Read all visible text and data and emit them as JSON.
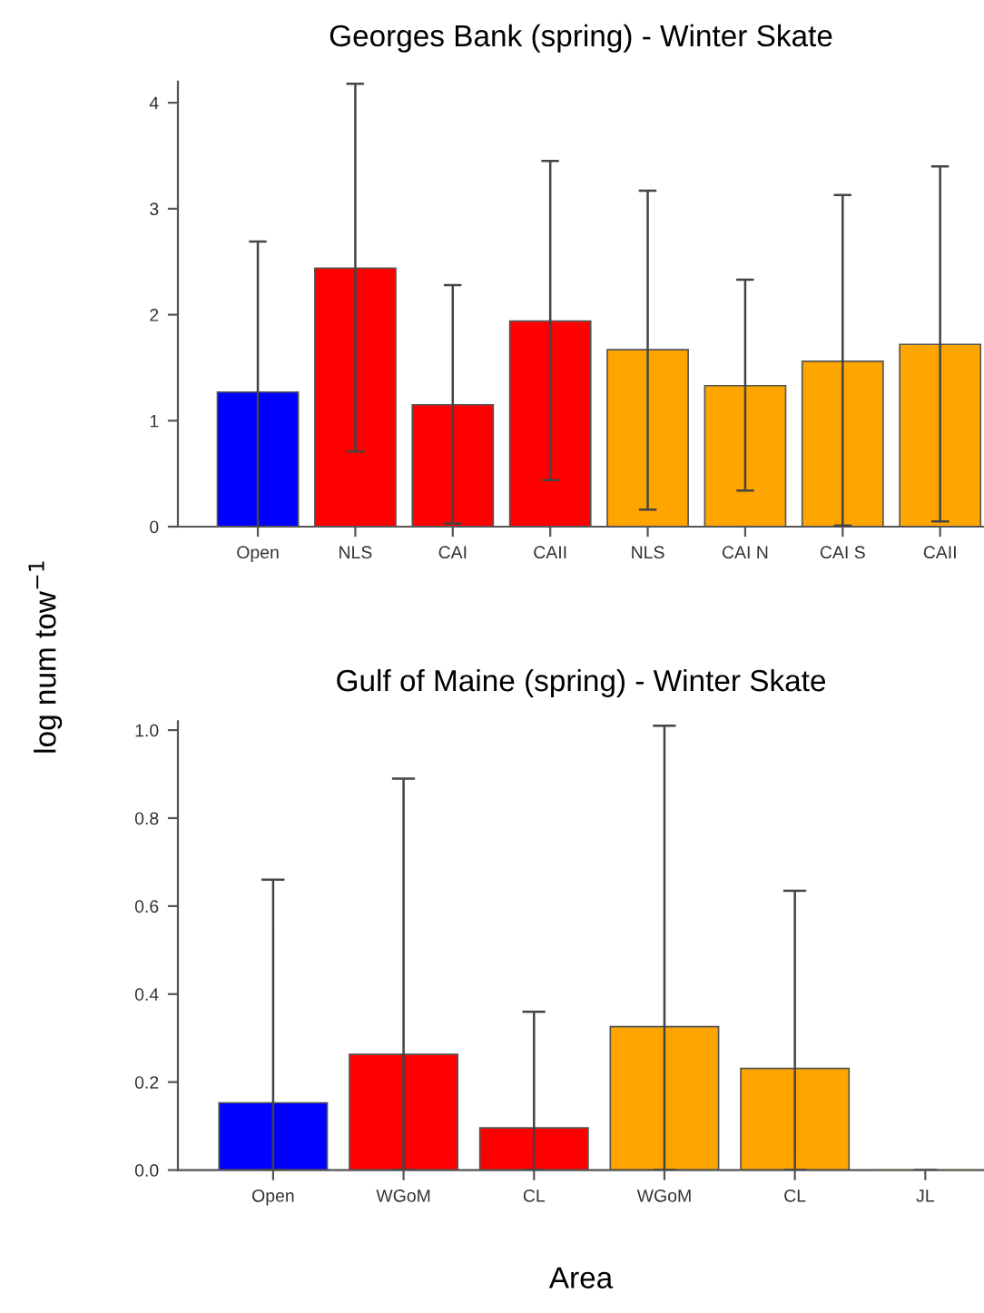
{
  "chart_data": [
    {
      "type": "bar",
      "title": "Georges Bank (spring) - Winter Skate",
      "ylabel": "log num tow$^{−1}$",
      "categories": [
        "Open",
        "NLS",
        "CAI",
        "CAII",
        "NLS",
        "CAI N",
        "CAI S",
        "CAII"
      ],
      "values": [
        1.27,
        2.44,
        1.15,
        1.94,
        1.67,
        1.33,
        1.56,
        1.72
      ],
      "errors": [
        [
          0,
          2.69
        ],
        [
          0.71,
          4.18
        ],
        [
          0.03,
          2.28
        ],
        [
          0.44,
          3.45
        ],
        [
          0.16,
          3.17
        ],
        [
          0.34,
          2.33
        ],
        [
          0.01,
          3.13
        ],
        [
          0.05,
          3.4
        ]
      ],
      "colors": [
        "#0000ff",
        "#ff0000",
        "#ff0000",
        "#ff0000",
        "#ffa500",
        "#ffa500",
        "#ffa500",
        "#ffa500"
      ],
      "ylim": [
        0,
        4.2
      ],
      "yticks": [
        0,
        1,
        2,
        3,
        4
      ],
      "grid": false
    },
    {
      "type": "bar",
      "title": "Gulf of Maine (spring) - Winter Skate",
      "xlabel": "Area",
      "categories": [
        "Open",
        "WGoM",
        "CL",
        "WGoM",
        "CL",
        "JL"
      ],
      "values": [
        0.153,
        0.263,
        0.096,
        0.326,
        0.231,
        0
      ],
      "errors": [
        [
          0,
          0.66
        ],
        [
          0,
          0.89
        ],
        [
          0,
          0.36
        ],
        [
          0,
          1.01
        ],
        [
          0,
          0.635
        ],
        [
          0,
          0
        ]
      ],
      "colors": [
        "#0000ff",
        "#ff0000",
        "#ff0000",
        "#ffa500",
        "#ffa500",
        "#ffa500"
      ],
      "ylim": [
        0,
        1.02
      ],
      "yticks": [
        {
          "value": 0,
          "label": "0.0"
        },
        {
          "value": 0.2,
          "label": "0.2"
        },
        {
          "value": 0.4,
          "label": "0.4"
        },
        {
          "value": 0.6,
          "label": "0.6"
        },
        {
          "value": 0.8,
          "label": "0.8"
        },
        {
          "value": 1.0,
          "label": "1.0"
        }
      ],
      "grid": false
    }
  ]
}
